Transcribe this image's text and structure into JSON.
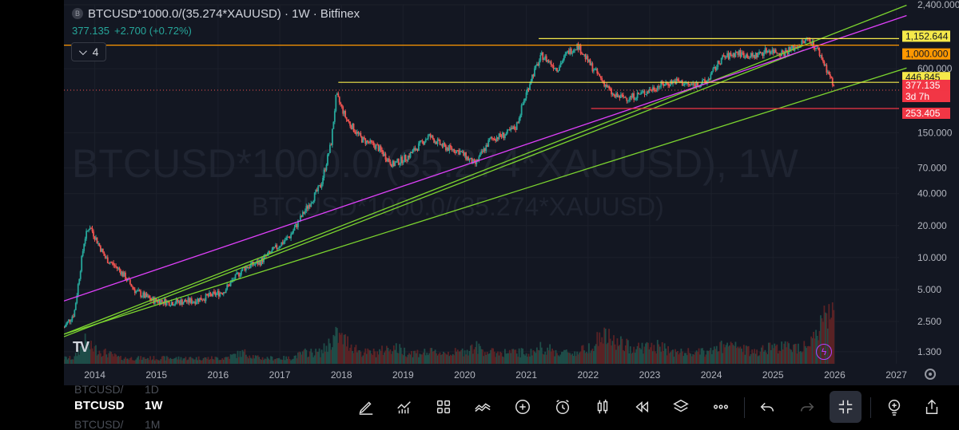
{
  "header": {
    "title": "BTCUSD*1000.0/(35.274*XAUUSD) · 1W · Bitfinex",
    "last_price": "377.135",
    "change": "+2.700 (+0.72%)",
    "indicators_count": "4",
    "logo_letter": "B"
  },
  "watermark": {
    "line1": "BTCUSD*1000.0/(35.274*XAUUSD), 1W",
    "line2": "BTCUSD*1000.0/(35.274*XAUUSD)"
  },
  "bottom_bar": {
    "timeframes": [
      {
        "symbol": "BTCUSD/",
        "interval": "1D"
      },
      {
        "symbol": "BTCUSD",
        "interval": "1W"
      },
      {
        "symbol": "BTCUSD/",
        "interval": "1M"
      }
    ],
    "tools": [
      "pencil-icon",
      "indicators-icon",
      "templates-icon",
      "compare-icon",
      "add-icon",
      "alert-icon",
      "candle-style-icon",
      "replay-icon",
      "layers-icon",
      "more-icon",
      "undo-icon",
      "redo-icon",
      "fullscreen-exit-icon",
      "idea-icon",
      "share-icon"
    ]
  },
  "colors": {
    "background": "#131722",
    "up": "#26a69a",
    "down": "#ef5350",
    "yellow_line": "#f5e94a",
    "orange_line": "#ff9800",
    "green_line": "#7cd52f",
    "magenta_line": "#e040fb",
    "red_line": "#f23645"
  },
  "chart_data": {
    "type": "candlestick",
    "scale": "log",
    "x": [
      "2013-07",
      "2013-09",
      "2013-11",
      "2013-12",
      "2014-03",
      "2014-06",
      "2014-09",
      "2014-12",
      "2015-04",
      "2015-08",
      "2015-11",
      "2016-02",
      "2016-06",
      "2016-09",
      "2016-12",
      "2017-03",
      "2017-06",
      "2017-09",
      "2017-11",
      "2017-12",
      "2018-02",
      "2018-05",
      "2018-08",
      "2018-11",
      "2019-02",
      "2019-06",
      "2019-09",
      "2019-12",
      "2020-03",
      "2020-06",
      "2020-09",
      "2020-11",
      "2020-12",
      "2021-02",
      "2021-04",
      "2021-07",
      "2021-09",
      "2021-11",
      "2022-01",
      "2022-04",
      "2022-06",
      "2022-09",
      "2022-12",
      "2023-03",
      "2023-06",
      "2023-09",
      "2023-12",
      "2024-03",
      "2024-06",
      "2024-09",
      "2024-12",
      "2025-03",
      "2025-06",
      "2025-08",
      "2025-10",
      "2025-12",
      "2026-01"
    ],
    "y": [
      2.2,
      3.0,
      15,
      20,
      10,
      7.5,
      4.8,
      4.0,
      3.8,
      3.9,
      4.3,
      4.8,
      8,
      9,
      12,
      16,
      28,
      48,
      120,
      340,
      200,
      130,
      110,
      75,
      90,
      140,
      110,
      100,
      75,
      130,
      145,
      170,
      250,
      500,
      800,
      600,
      850,
      1000,
      700,
      450,
      330,
      320,
      360,
      420,
      460,
      420,
      450,
      750,
      850,
      780,
      900,
      850,
      1000,
      1152,
      850,
      520,
      377
    ],
    "volume": [
      1,
      1,
      4,
      3,
      2,
      1,
      1,
      1,
      1,
      1,
      1,
      1,
      2,
      1,
      1,
      1,
      2,
      2,
      4,
      5,
      4,
      2,
      2,
      3,
      2,
      2,
      2,
      2,
      3,
      2,
      2,
      2,
      2,
      2,
      3,
      2,
      2,
      2,
      3,
      5,
      4,
      3,
      3,
      3,
      2,
      2,
      2,
      3,
      3,
      2,
      3,
      3,
      3,
      4,
      6,
      9,
      12
    ],
    "ylim": [
      1,
      2400
    ],
    "y_ticks": [
      "2,400.000",
      "600.000",
      "150.000",
      "70.000",
      "40.000",
      "20.000",
      "10.000",
      "5.000",
      "2.500",
      "1.300"
    ],
    "x_ticks": [
      "2014",
      "2015",
      "2016",
      "2017",
      "2018",
      "2019",
      "2020",
      "2021",
      "2022",
      "2023",
      "2024",
      "2025",
      "2026",
      "2027"
    ],
    "price_labels": [
      {
        "label": "1,152.644",
        "style": "yellow"
      },
      {
        "label": "1,000.000",
        "style": "orange"
      },
      {
        "label": "446.845",
        "style": "yellow"
      },
      {
        "label": "377.135",
        "style": "red"
      },
      {
        "label": "3d 7h",
        "style": "red"
      },
      {
        "label": "253.405",
        "style": "red"
      }
    ],
    "horizontal_levels": [
      1152.644,
      1000.0,
      446.845,
      253.405
    ],
    "grid": true
  }
}
